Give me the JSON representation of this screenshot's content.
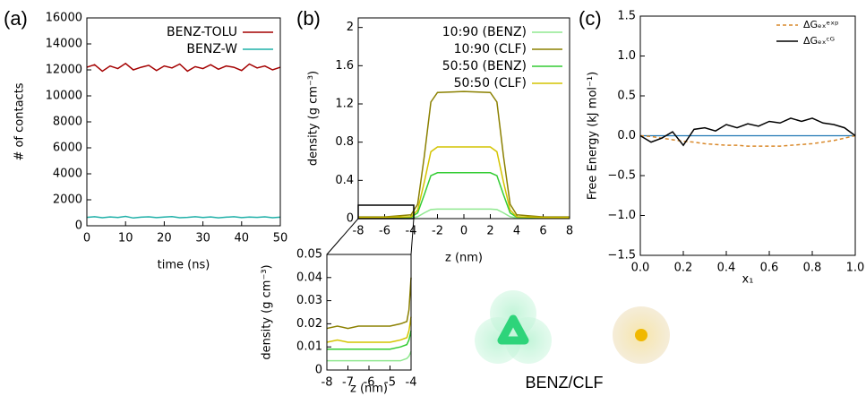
{
  "figure_caption": "BENZ/CLF",
  "chart_data": [
    {
      "type": "line",
      "panel_label": "(a)",
      "x_label": "time (ns)",
      "y_label": "# of contacts",
      "xlim": [
        0,
        50
      ],
      "xticks": [
        0,
        10,
        20,
        30,
        40,
        50
      ],
      "ylim": [
        0,
        16000
      ],
      "yticks": [
        0,
        2000,
        4000,
        6000,
        8000,
        10000,
        12000,
        14000,
        16000
      ],
      "legend": "top-right",
      "x": [
        0,
        2,
        4,
        6,
        8,
        10,
        12,
        14,
        16,
        18,
        20,
        22,
        24,
        26,
        28,
        30,
        32,
        34,
        36,
        38,
        40,
        42,
        44,
        46,
        48,
        50
      ],
      "series": [
        {
          "name": "BENZ-TOLU",
          "color": "#a40000",
          "values": [
            12200,
            12400,
            11900,
            12300,
            12100,
            12500,
            12000,
            12200,
            12350,
            11950,
            12300,
            12150,
            12450,
            11900,
            12250,
            12100,
            12400,
            12050,
            12300,
            12200,
            11950,
            12450,
            12150,
            12300,
            12000,
            12200
          ]
        },
        {
          "name": "BENZ-W",
          "color": "#1fb0a8",
          "values": [
            650,
            700,
            620,
            680,
            640,
            720,
            600,
            660,
            690,
            630,
            670,
            710,
            620,
            650,
            700,
            640,
            680,
            610,
            660,
            700,
            630,
            670,
            650,
            690,
            620,
            660
          ]
        }
      ]
    },
    {
      "type": "line",
      "panel_label": "(b)",
      "x_label": "z (nm)",
      "y_label": "density (g cm⁻³)",
      "xlim": [
        -8,
        8
      ],
      "xticks": [
        -8,
        -6,
        -4,
        -2,
        0,
        2,
        4,
        6,
        8
      ],
      "ylim": [
        0,
        2.1
      ],
      "yticks": [
        0,
        0.4,
        0.8,
        1.2,
        1.6,
        2
      ],
      "legend": "top-right",
      "x": [
        -8,
        -6,
        -4,
        -3.5,
        -3,
        -2.5,
        -2,
        0,
        2,
        2.5,
        3,
        3.5,
        4,
        6,
        8
      ],
      "series": [
        {
          "name": "10:90 (BENZ)",
          "color": "#90e890",
          "values": [
            0.004,
            0.004,
            0.007,
            0.02,
            0.06,
            0.095,
            0.1,
            0.1,
            0.1,
            0.095,
            0.06,
            0.02,
            0.007,
            0.004,
            0.004
          ]
        },
        {
          "name": "10:90 (CLF)",
          "color": "#8b8000",
          "values": [
            0.018,
            0.018,
            0.04,
            0.15,
            0.65,
            1.22,
            1.32,
            1.33,
            1.32,
            1.22,
            0.65,
            0.15,
            0.04,
            0.018,
            0.018
          ]
        },
        {
          "name": "50:50 (BENZ)",
          "color": "#33cc33",
          "values": [
            0.009,
            0.009,
            0.015,
            0.06,
            0.25,
            0.45,
            0.48,
            0.48,
            0.48,
            0.45,
            0.25,
            0.06,
            0.015,
            0.009,
            0.009
          ]
        },
        {
          "name": "50:50 (CLF)",
          "color": "#d4c400",
          "values": [
            0.012,
            0.012,
            0.02,
            0.09,
            0.38,
            0.7,
            0.75,
            0.75,
            0.75,
            0.7,
            0.38,
            0.09,
            0.02,
            0.012,
            0.012
          ]
        }
      ]
    },
    {
      "type": "line",
      "x_label": "z (nm)",
      "y_label": "density (g cm⁻³)",
      "xlim": [
        -8,
        -4
      ],
      "xticks": [
        -8,
        -7,
        -6,
        -5,
        -4
      ],
      "ylim": [
        0,
        0.05
      ],
      "yticks": [
        0,
        0.01,
        0.02,
        0.03,
        0.04,
        0.05
      ],
      "x": [
        -8,
        -7.5,
        -7,
        -6.5,
        -6,
        -5.5,
        -5,
        -4.5,
        -4.2,
        -4.1,
        -4
      ],
      "series": [
        {
          "color": "#90e890",
          "values": [
            0.004,
            0.004,
            0.004,
            0.004,
            0.004,
            0.004,
            0.004,
            0.004,
            0.005,
            0.006,
            0.008
          ]
        },
        {
          "color": "#8b8000",
          "values": [
            0.018,
            0.019,
            0.018,
            0.019,
            0.019,
            0.019,
            0.019,
            0.02,
            0.021,
            0.026,
            0.04
          ]
        },
        {
          "color": "#33cc33",
          "values": [
            0.009,
            0.009,
            0.009,
            0.009,
            0.009,
            0.009,
            0.009,
            0.01,
            0.011,
            0.013,
            0.017
          ]
        },
        {
          "color": "#d4c400",
          "values": [
            0.012,
            0.013,
            0.012,
            0.012,
            0.012,
            0.012,
            0.012,
            0.013,
            0.014,
            0.017,
            0.023
          ]
        }
      ]
    },
    {
      "type": "line",
      "panel_label": "(c)",
      "x_label": "x₁",
      "y_label": "Free Energy (kJ mol⁻¹)",
      "xlim": [
        0,
        1
      ],
      "xticks": [
        {
          "value": 0,
          "label": "0.0"
        },
        0.2,
        0.4,
        0.6,
        0.8,
        {
          "value": 1,
          "label": "1.0"
        }
      ],
      "ylim": [
        -1.5,
        1.5
      ],
      "yticks": [
        {
          "value": -1.5,
          "label": "−1.5"
        },
        {
          "value": -1,
          "label": "−1.0"
        },
        {
          "value": -0.5,
          "label": "−0.5"
        },
        {
          "value": 0,
          "label": "0.0"
        },
        0.5,
        {
          "value": 1,
          "label": "1.0"
        },
        1.5
      ],
      "hline": 0,
      "hline_color": "#1f77b4",
      "legend": "top-right",
      "x": [
        0,
        0.05,
        0.1,
        0.15,
        0.2,
        0.25,
        0.3,
        0.35,
        0.4,
        0.45,
        0.5,
        0.55,
        0.6,
        0.65,
        0.7,
        0.75,
        0.8,
        0.85,
        0.9,
        0.95,
        1
      ],
      "series": [
        {
          "name": "ΔGₑₓᵉˣᵖ",
          "color": "#d9892b",
          "dash": true,
          "values": [
            0,
            -0.01,
            -0.03,
            -0.05,
            -0.07,
            -0.08,
            -0.1,
            -0.11,
            -0.12,
            -0.12,
            -0.13,
            -0.13,
            -0.13,
            -0.13,
            -0.12,
            -0.11,
            -0.1,
            -0.08,
            -0.06,
            -0.03,
            0
          ]
        },
        {
          "name": "ΔGₑₓᶜᴳ",
          "color": "#000000",
          "values": [
            0,
            -0.08,
            -0.03,
            0.05,
            -0.12,
            0.08,
            0.1,
            0.06,
            0.14,
            0.1,
            0.15,
            0.12,
            0.18,
            0.16,
            0.22,
            0.18,
            0.22,
            0.16,
            0.14,
            0.1,
            0
          ]
        }
      ]
    }
  ]
}
